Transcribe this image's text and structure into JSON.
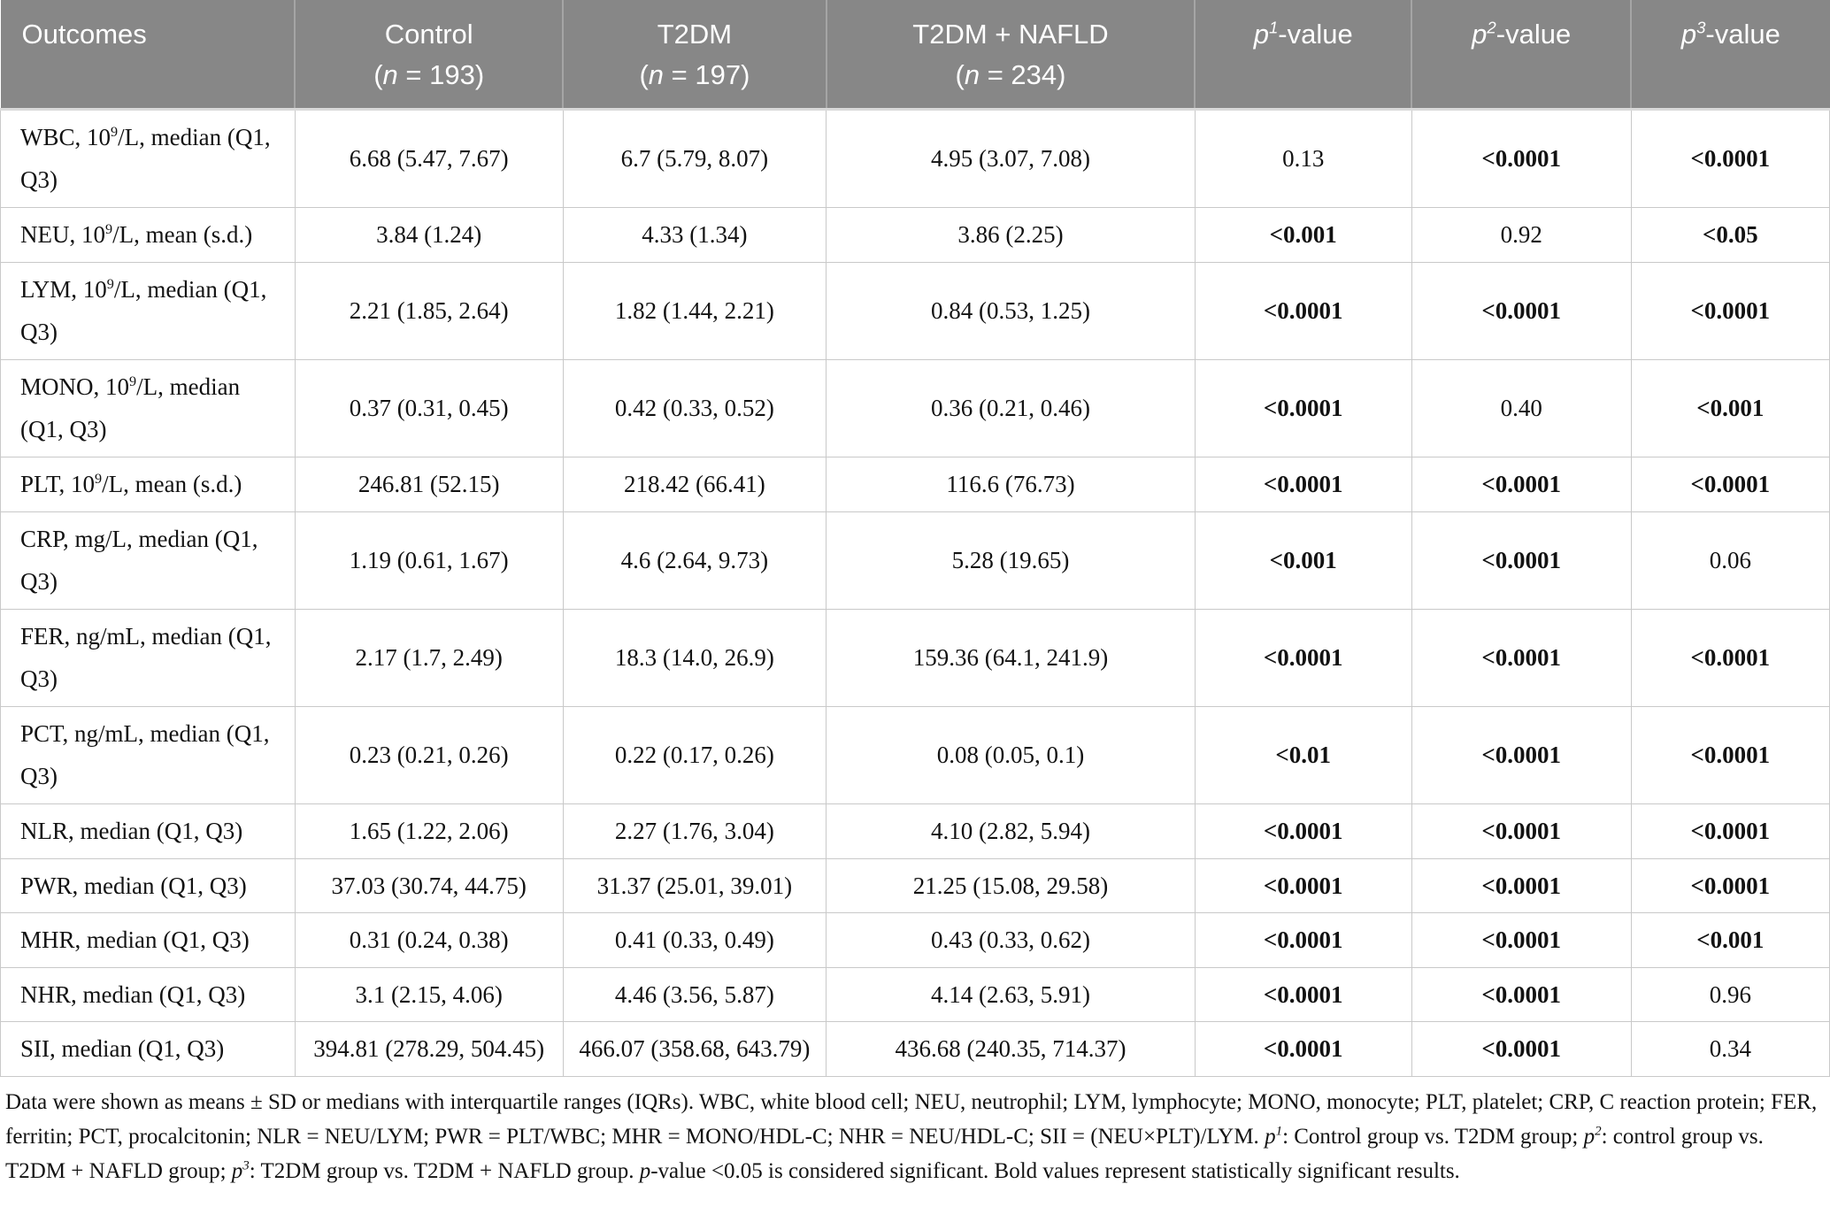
{
  "table": {
    "columns": [
      {
        "id": "outcomes",
        "html": "Outcomes"
      },
      {
        "id": "control",
        "html": "Control<br>(<i>n</i> = 193)"
      },
      {
        "id": "t2dm",
        "html": "T2DM<br>(<i>n</i> = 197)"
      },
      {
        "id": "t2dm_nafld",
        "html": "T2DM + NAFLD<br>(<i>n</i> = 234)"
      },
      {
        "id": "p1",
        "html": "<i>p<sup>1</sup></i>-value"
      },
      {
        "id": "p2",
        "html": "<i>p<sup>2</sup></i>-value"
      },
      {
        "id": "p3",
        "html": "<i>p<sup>3</sup></i>-value"
      }
    ],
    "rows": [
      {
        "label_html": "WBC, 10<sup>9</sup>/L, median (Q1, Q3)",
        "values": [
          "6.68 (5.47, 7.67)",
          "6.7 (5.79, 8.07)",
          "4.95 (3.07, 7.08)"
        ],
        "p": [
          {
            "text": "0.13",
            "bold": false
          },
          {
            "text": "<0.0001",
            "bold": true
          },
          {
            "text": "<0.0001",
            "bold": true
          }
        ]
      },
      {
        "label_html": "NEU, 10<sup>9</sup>/L, mean (s.d.)",
        "values": [
          "3.84 (1.24)",
          "4.33 (1.34)",
          "3.86 (2.25)"
        ],
        "p": [
          {
            "text": "<0.001",
            "bold": true
          },
          {
            "text": "0.92",
            "bold": false
          },
          {
            "text": "<0.05",
            "bold": true
          }
        ]
      },
      {
        "label_html": "LYM, 10<sup>9</sup>/L, median (Q1, Q3)",
        "values": [
          "2.21 (1.85, 2.64)",
          "1.82 (1.44, 2.21)",
          "0.84 (0.53, 1.25)"
        ],
        "p": [
          {
            "text": "<0.0001",
            "bold": true
          },
          {
            "text": "<0.0001",
            "bold": true
          },
          {
            "text": "<0.0001",
            "bold": true
          }
        ]
      },
      {
        "label_html": "MONO, 10<sup>9</sup>/L, median (Q1, Q3)",
        "values": [
          "0.37 (0.31, 0.45)",
          "0.42 (0.33, 0.52)",
          "0.36 (0.21, 0.46)"
        ],
        "p": [
          {
            "text": "<0.0001",
            "bold": true
          },
          {
            "text": "0.40",
            "bold": false
          },
          {
            "text": "<0.001",
            "bold": true
          }
        ]
      },
      {
        "label_html": "PLT, 10<sup>9</sup>/L, mean (s.d.)",
        "values": [
          "246.81 (52.15)",
          "218.42 (66.41)",
          "116.6 (76.73)"
        ],
        "p": [
          {
            "text": "<0.0001",
            "bold": true
          },
          {
            "text": "<0.0001",
            "bold": true
          },
          {
            "text": "<0.0001",
            "bold": true
          }
        ]
      },
      {
        "label_html": "CRP, mg/L, median (Q1, Q3)",
        "values": [
          "1.19 (0.61, 1.67)",
          "4.6 (2.64, 9.73)",
          "5.28 (19.65)"
        ],
        "p": [
          {
            "text": "<0.001",
            "bold": true
          },
          {
            "text": "<0.0001",
            "bold": true
          },
          {
            "text": "0.06",
            "bold": false
          }
        ]
      },
      {
        "label_html": "FER, ng/mL, median (Q1, Q3)",
        "values": [
          "2.17 (1.7, 2.49)",
          "18.3 (14.0, 26.9)",
          "159.36 (64.1, 241.9)"
        ],
        "p": [
          {
            "text": "<0.0001",
            "bold": true
          },
          {
            "text": "<0.0001",
            "bold": true
          },
          {
            "text": "<0.0001",
            "bold": true
          }
        ]
      },
      {
        "label_html": "PCT, ng/mL, median (Q1, Q3)",
        "values": [
          "0.23 (0.21, 0.26)",
          "0.22 (0.17, 0.26)",
          "0.08 (0.05, 0.1)"
        ],
        "p": [
          {
            "text": "<0.01",
            "bold": true
          },
          {
            "text": "<0.0001",
            "bold": true
          },
          {
            "text": "<0.0001",
            "bold": true
          }
        ]
      },
      {
        "label_html": "NLR, median (Q1, Q3)",
        "values": [
          "1.65 (1.22, 2.06)",
          "2.27 (1.76, 3.04)",
          "4.10 (2.82, 5.94)"
        ],
        "p": [
          {
            "text": "<0.0001",
            "bold": true
          },
          {
            "text": "<0.0001",
            "bold": true
          },
          {
            "text": "<0.0001",
            "bold": true
          }
        ]
      },
      {
        "label_html": "PWR, median (Q1, Q3)",
        "values": [
          "37.03 (30.74, 44.75)",
          "31.37 (25.01, 39.01)",
          "21.25 (15.08, 29.58)"
        ],
        "p": [
          {
            "text": "<0.0001",
            "bold": true
          },
          {
            "text": "<0.0001",
            "bold": true
          },
          {
            "text": "<0.0001",
            "bold": true
          }
        ]
      },
      {
        "label_html": "MHR, median (Q1, Q3)",
        "values": [
          "0.31 (0.24, 0.38)",
          "0.41 (0.33, 0.49)",
          "0.43 (0.33, 0.62)"
        ],
        "p": [
          {
            "text": "<0.0001",
            "bold": true
          },
          {
            "text": "<0.0001",
            "bold": true
          },
          {
            "text": "<0.001",
            "bold": true
          }
        ]
      },
      {
        "label_html": "NHR, median (Q1, Q3)",
        "values": [
          "3.1 (2.15, 4.06)",
          "4.46 (3.56, 5.87)",
          "4.14 (2.63, 5.91)"
        ],
        "p": [
          {
            "text": "<0.0001",
            "bold": true
          },
          {
            "text": "<0.0001",
            "bold": true
          },
          {
            "text": "0.96",
            "bold": false
          }
        ]
      },
      {
        "label_html": "SII, median (Q1, Q3)",
        "values": [
          "394.81 (278.29, 504.45)",
          "466.07 (358.68, 643.79)",
          "436.68 (240.35, 714.37)"
        ],
        "p": [
          {
            "text": "<0.0001",
            "bold": true
          },
          {
            "text": "<0.0001",
            "bold": true
          },
          {
            "text": "0.34",
            "bold": false
          }
        ]
      }
    ],
    "footnote_html": "Data were shown as means ± SD or medians with interquartile ranges (IQRs). WBC, white blood cell; NEU, neutrophil; LYM, lymphocyte; MONO, monocyte; PLT, platelet; CRP, C reaction protein; FER, ferritin; PCT, procalcitonin; NLR = NEU/LYM; PWR = PLT/WBC; MHR = MONO/HDL-C; NHR = NEU/HDL-C; SII = (NEU×PLT)/LYM. <i>p<sup>1</sup></i>: Control group vs. T2DM group; <i>p<sup>2</sup></i>: control group vs. T2DM + NAFLD group; <i>p<sup>3</sup></i>: T2DM group vs. T2DM + NAFLD group. <i>p</i>-value &lt;0.05 is considered significant. Bold values represent statistically significant results.",
    "colors": {
      "header_background": "#878787",
      "header_text": "#ffffff",
      "body_border": "#c9c9c9",
      "body_text": "#121212"
    }
  }
}
